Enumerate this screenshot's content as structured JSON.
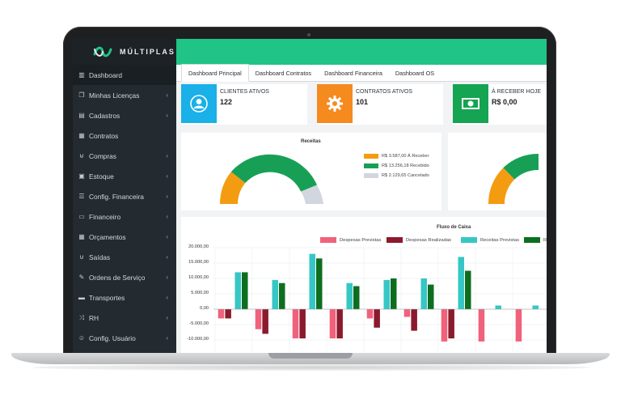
{
  "brand": {
    "name": "MÚLTIPLAS"
  },
  "sidebar": {
    "items": [
      {
        "label": "Dashboard",
        "icon": "chart-icon",
        "has_chevron": false
      },
      {
        "label": "Minhas Licenças",
        "icon": "copy-icon",
        "has_chevron": true
      },
      {
        "label": "Cadastros",
        "icon": "book-icon",
        "has_chevron": true
      },
      {
        "label": "Contratos",
        "icon": "document-icon",
        "has_chevron": false
      },
      {
        "label": "Compras",
        "icon": "basket-icon",
        "has_chevron": true
      },
      {
        "label": "Estoque",
        "icon": "box-icon",
        "has_chevron": true
      },
      {
        "label": "Config. Financeira",
        "icon": "list-icon",
        "has_chevron": true
      },
      {
        "label": "Financeiro",
        "icon": "money-icon",
        "has_chevron": true
      },
      {
        "label": "Orçamentos",
        "icon": "calculator-icon",
        "has_chevron": true
      },
      {
        "label": "Saídas",
        "icon": "cart-icon",
        "has_chevron": true
      },
      {
        "label": "Ordens de Serviço",
        "icon": "wrench-icon",
        "has_chevron": true
      },
      {
        "label": "Transportes",
        "icon": "truck-icon",
        "has_chevron": true
      },
      {
        "label": "RH",
        "icon": "shuffle-icon",
        "has_chevron": true
      },
      {
        "label": "Config. Usuário",
        "icon": "users-icon",
        "has_chevron": true
      }
    ]
  },
  "tabs": [
    "Dashboard Principal",
    "Dashboard Contratos",
    "Dashboard Financeira",
    "Dashboard OS"
  ],
  "cards": [
    {
      "label": "CLIENTES ATIVOS",
      "value": "122",
      "color": "#1ab0e8",
      "icon": "user-icon"
    },
    {
      "label": "CONTRATOS ATIVOS",
      "value": "101",
      "color": "#f58a1f",
      "icon": "gear-icon"
    },
    {
      "label": "À RECEBER HOJE",
      "value": "R$ 0,00",
      "color": "#14a452",
      "icon": "money-icon"
    }
  ],
  "receitas": {
    "title": "Receitas",
    "legend": [
      {
        "label": "R$ 3.587,00 À Receber",
        "color": "#f39c12"
      },
      {
        "label": "R$ 13.256,18 Recebido",
        "color": "#17a055"
      },
      {
        "label": "R$ 2.129,65 Cancelado",
        "color": "#d2d6de"
      }
    ]
  },
  "chart_data": {
    "type": "bar",
    "title": "Fluxo de Caixa",
    "ylim": [
      -12000,
      20000
    ],
    "y_ticks": [
      "20.000,00",
      "15.000,00",
      "10.000,00",
      "5.000,00",
      "0,00",
      "-5.000,00",
      "-10.000,00"
    ],
    "tick_values": [
      20000,
      15000,
      10000,
      5000,
      0,
      -5000,
      -10000
    ],
    "series": [
      {
        "name": "Despesas Previstas",
        "color": "#f0617c",
        "values": [
          -3000,
          -6500,
          -9500,
          -9500,
          -3000,
          -2500,
          -10500,
          -10500,
          -10500,
          -10500
        ]
      },
      {
        "name": "Despesas Realizadas",
        "color": "#8a1a2c",
        "values": [
          -3000,
          -8000,
          -9500,
          -9500,
          -6000,
          -7000,
          -9500,
          0,
          0,
          0
        ]
      },
      {
        "name": "Receitas Previstas",
        "color": "#36c6c6",
        "values": [
          12000,
          9500,
          18000,
          8500,
          9500,
          10000,
          17000,
          1200,
          1200,
          0
        ]
      },
      {
        "name": "Recei",
        "color": "#0d6e1f",
        "values": [
          12000,
          8500,
          16500,
          7500,
          10000,
          8000,
          12500,
          0,
          0,
          0
        ]
      }
    ]
  }
}
